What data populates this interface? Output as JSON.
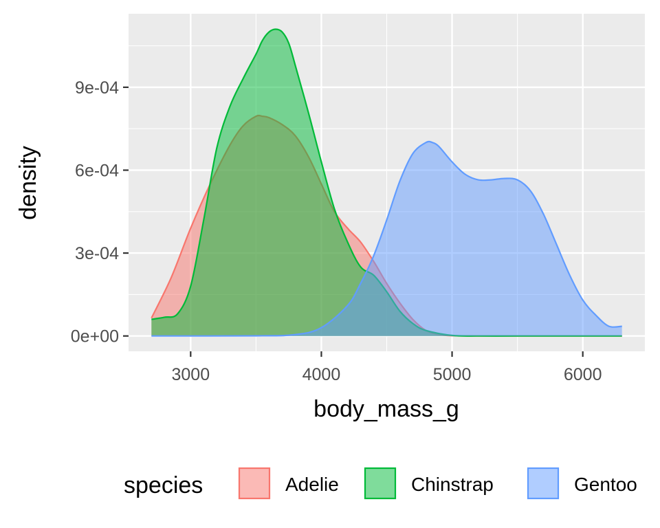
{
  "chart_data": {
    "type": "area",
    "xlabel": "body_mass_g",
    "ylabel": "density",
    "xlim": [
      2525,
      6475
    ],
    "ylim": [
      -5.55e-05,
      0.001166
    ],
    "x_ticks": [
      3000,
      4000,
      5000,
      6000
    ],
    "x_tick_labels": [
      "3000",
      "4000",
      "5000",
      "6000"
    ],
    "y_ticks": [
      0,
      0.0003,
      0.0006,
      0.0009
    ],
    "y_tick_labels": [
      "0e+00",
      "3e-04",
      "6e-04",
      "9e-04"
    ],
    "grid": true,
    "legend": {
      "title": "species",
      "position": "bottom"
    },
    "series": [
      {
        "name": "Adelie",
        "fill": "#F8766D",
        "x": [
          2700,
          2850,
          3000,
          3150,
          3300,
          3400,
          3500,
          3550,
          3600,
          3700,
          3800,
          3900,
          4000,
          4100,
          4200,
          4300,
          4400,
          4500,
          4600,
          4700,
          4800,
          4900,
          5000,
          5200
        ],
        "y": [
          6.5e-05,
          0.00021,
          0.00039,
          0.00055,
          0.00069,
          0.00076,
          0.000795,
          0.000795,
          0.00079,
          0.000765,
          0.000725,
          0.00065,
          0.00055,
          0.00045,
          0.00039,
          0.00034,
          0.00027,
          0.00019,
          0.00012,
          6e-05,
          2e-05,
          5e-06,
          1e-06,
          0
        ]
      },
      {
        "name": "Chinstrap",
        "fill": "#00BA38",
        "x": [
          2700,
          2800,
          2900,
          3000,
          3100,
          3200,
          3300,
          3400,
          3500,
          3550,
          3600,
          3650,
          3700,
          3750,
          3800,
          3900,
          4000,
          4100,
          4200,
          4300,
          4400,
          4500,
          4600,
          4700,
          4800,
          5000,
          5200,
          5500
        ],
        "y": [
          6e-05,
          6.8e-05,
          8e-05,
          0.00018,
          0.00042,
          0.00068,
          0.00083,
          0.00093,
          0.00102,
          0.00107,
          0.0011,
          0.00111,
          0.0011,
          0.00106,
          0.00098,
          0.00081,
          0.00063,
          0.00046,
          0.00034,
          0.00025,
          0.00022,
          0.00016,
          9e-05,
          4.5e-05,
          2e-05,
          2e-06,
          0,
          0
        ]
      },
      {
        "name": "Gentoo",
        "fill": "#619CFF",
        "x": [
          2700,
          3500,
          3800,
          4000,
          4200,
          4300,
          4400,
          4500,
          4600,
          4700,
          4800,
          4850,
          4900,
          5000,
          5100,
          5200,
          5300,
          5400,
          5500,
          5600,
          5700,
          5800,
          5900,
          6000,
          6100,
          6200,
          6300
        ],
        "y": [
          0,
          5e-07,
          5e-06,
          3e-05,
          0.00011,
          0.00019,
          0.00029,
          0.00042,
          0.00056,
          0.00066,
          0.0007,
          0.0007,
          0.000685,
          0.00063,
          0.000585,
          0.000565,
          0.000565,
          0.00057,
          0.000565,
          0.000525,
          0.00044,
          0.00033,
          0.00022,
          0.00013,
          7.5e-05,
          3.5e-05,
          3.5e-05
        ]
      }
    ]
  }
}
